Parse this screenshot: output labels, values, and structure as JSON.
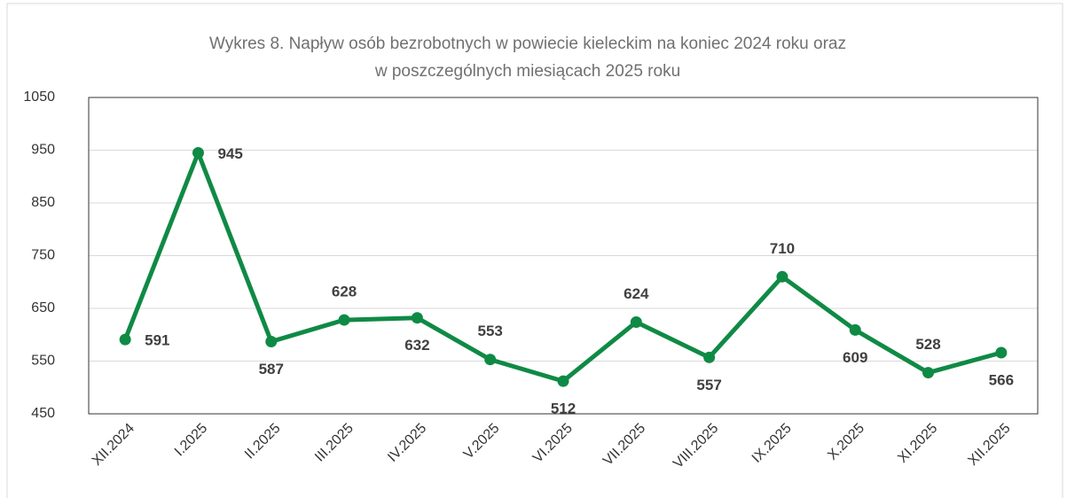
{
  "chart_data": {
    "type": "line",
    "title": [
      "Wykres 8. Napływ osób bezrobotnych w powiecie kieleckim na koniec 2024 roku oraz",
      "w poszczególnych miesiącach 2025 roku"
    ],
    "categories": [
      "XII.2024",
      "I.2025",
      "II.2025",
      "III.2025",
      "IV.2025",
      "V.2025",
      "VI.2025",
      "VII.2025",
      "VIII.2025",
      "IX.2025",
      "X.2025",
      "XI.2025",
      "XII.2025"
    ],
    "values": [
      591,
      945,
      587,
      628,
      632,
      553,
      512,
      624,
      557,
      710,
      609,
      528,
      566
    ],
    "color": "#0f8a45",
    "ylim": [
      450,
      1050
    ],
    "yticks": [
      450,
      550,
      650,
      750,
      850,
      950,
      1050
    ],
    "grid": true
  }
}
